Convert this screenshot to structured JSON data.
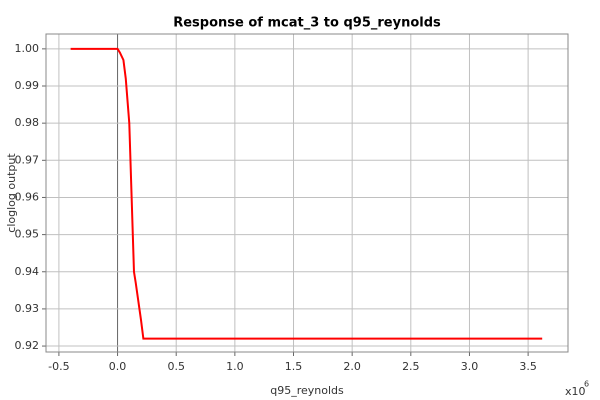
{
  "chart_data": {
    "type": "line",
    "title": "Response of mcat_3 to q95_reynolds",
    "x_label": "q95_reynolds",
    "y_label": "cloglog output",
    "x_multiplier": "x10",
    "x_multiplier_exponent": "6",
    "x": [
      -0.4,
      0,
      0.02,
      0.05,
      0.07,
      0.1,
      0.12,
      0.14,
      0.155,
      0.2,
      0.22,
      3.62
    ],
    "series": [
      {
        "name": "mcat_3",
        "color": "#ff0000",
        "values": [
          1.0,
          1.0,
          0.999,
          0.997,
          0.992,
          0.98,
          0.96,
          0.94,
          0.937,
          0.927,
          0.922,
          0.922
        ]
      }
    ],
    "xlim": [
      -0.61,
      3.84
    ],
    "ylim": [
      0.9184,
      1.004
    ],
    "xticks": [
      {
        "value": -0.5,
        "label": "-0.5"
      },
      {
        "value": 0,
        "label": "0.0"
      },
      0.5,
      {
        "value": 1,
        "label": "1.0"
      },
      1.5,
      {
        "value": 2,
        "label": "2.0"
      },
      2.5,
      {
        "value": 3,
        "label": "3.0"
      },
      3.5
    ],
    "yticks": [
      {
        "value": 0.92,
        "label": "0.92"
      },
      0.93,
      0.94,
      0.95,
      0.96,
      0.97,
      0.98,
      0.99,
      {
        "value": 1,
        "label": "1.00"
      }
    ],
    "grid": true
  }
}
